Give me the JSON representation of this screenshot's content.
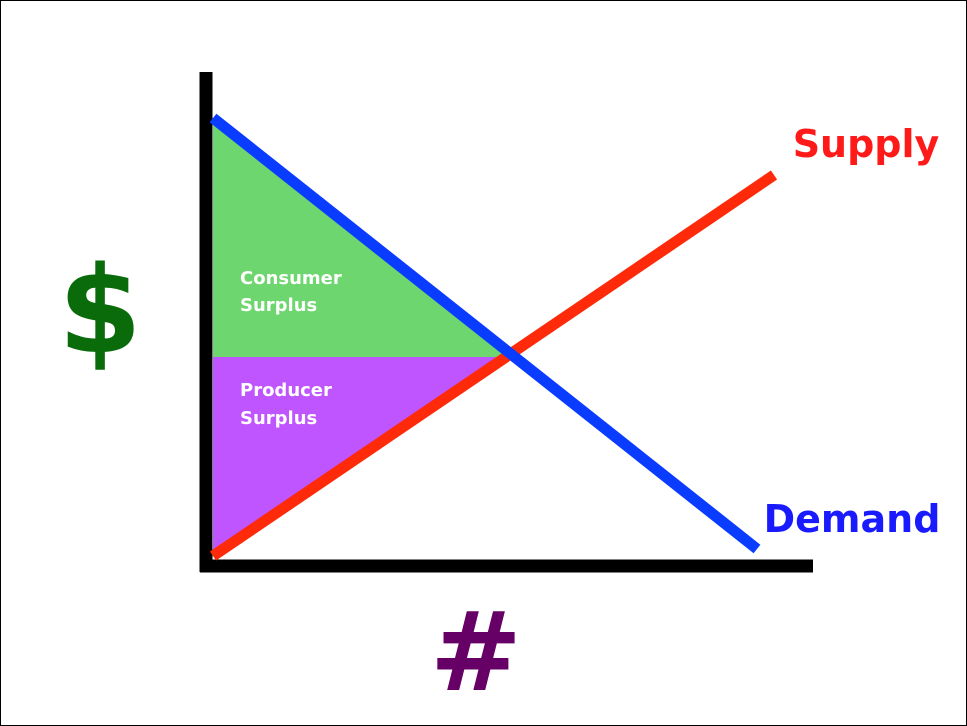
{
  "axes": {
    "y_label": "$",
    "x_label": "#"
  },
  "curves": [
    {
      "label": "Supply"
    },
    {
      "label": "Demand"
    }
  ],
  "regions": [
    {
      "lines": [
        "Consumer",
        "Surplus"
      ]
    },
    {
      "lines": [
        "Producer",
        "Surplus"
      ]
    }
  ]
}
